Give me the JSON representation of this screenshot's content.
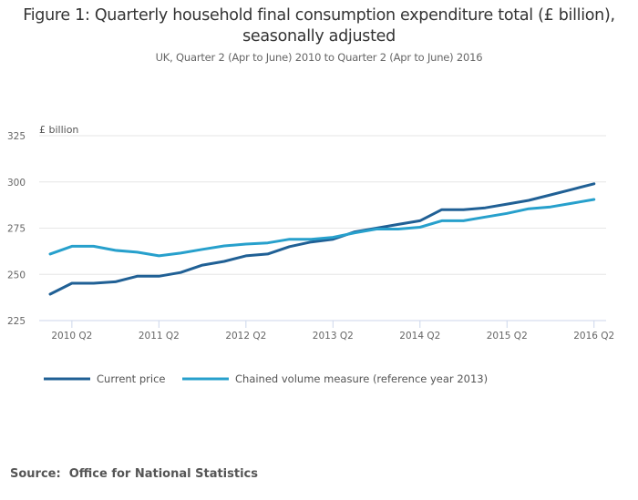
{
  "chart_data": {
    "type": "line",
    "title": "Figure 1: Quarterly household final consumption expenditure total (£ billion), seasonally adjusted",
    "subtitle": "UK, Quarter 2 (Apr to June) 2010 to Quarter 2 (Apr to June) 2016",
    "ylabel": "£ billion",
    "xlabel": "",
    "ylim": [
      225,
      325
    ],
    "yticks": [
      225,
      250,
      275,
      300,
      325
    ],
    "xtick_labels": [
      "2010 Q2",
      "2011 Q2",
      "2012 Q2",
      "2013 Q2",
      "2014 Q2",
      "2015 Q2",
      "2016 Q2"
    ],
    "xtick_indices": [
      1,
      5,
      9,
      13,
      17,
      21,
      25
    ],
    "grid": true,
    "legend_position": "bottom-left",
    "series": [
      {
        "name": "Current price",
        "color": "#206095",
        "values": [
          239.3,
          245.2,
          245.2,
          246,
          249,
          249,
          251,
          255,
          257,
          260,
          261,
          265,
          267.5,
          269,
          273,
          275,
          277,
          279,
          285,
          285,
          286,
          288,
          290,
          293,
          296,
          299
        ]
      },
      {
        "name": "Chained volume measure (reference year 2013)",
        "color": "#27a0cc",
        "values": [
          261,
          265.2,
          265.2,
          263,
          262,
          260,
          261.5,
          263.5,
          265.4,
          266.4,
          267,
          269,
          269,
          270,
          272.5,
          274.5,
          274.5,
          275.5,
          279,
          279,
          281,
          283,
          285.5,
          286.5,
          288.5,
          290.5
        ]
      }
    ]
  },
  "header": {
    "title": "Figure 1: Quarterly household final consumption expenditure total (£ billion), seasonally adjusted",
    "subtitle": "UK, Quarter 2 (Apr to June) 2010 to Quarter 2 (Apr to June) 2016"
  },
  "footer": {
    "source": "Source:  Office for National Statistics"
  }
}
